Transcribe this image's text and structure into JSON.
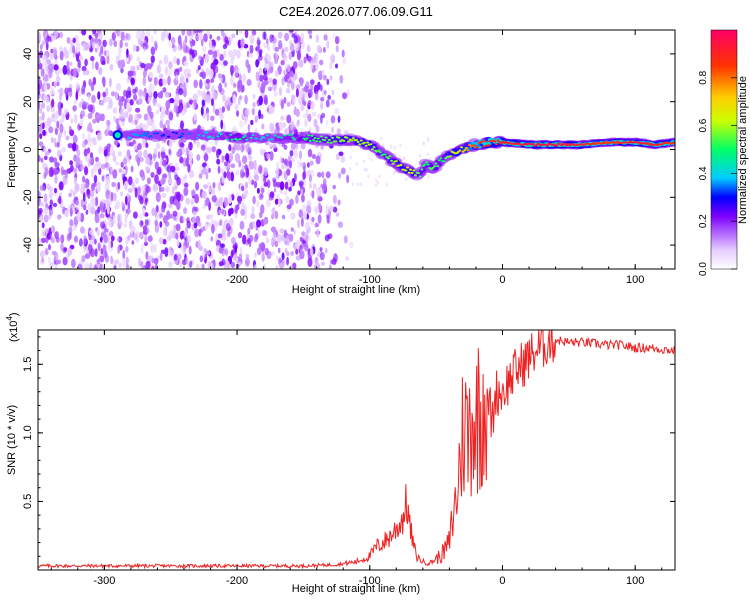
{
  "title": "C2E4.2026.077.06.09.G11",
  "chart_data": [
    {
      "type": "heatmap",
      "title": "C2E4.2026.077.06.09.G11",
      "xlabel": "Height of straight line (km)",
      "ylabel": "Frequency (Hz)",
      "xlim": [
        -350,
        130
      ],
      "ylim": [
        -50,
        50
      ],
      "xticks": [
        -300,
        -200,
        -100,
        0,
        100
      ],
      "xtick_labels": [
        "-300",
        "-200",
        "-100",
        "0",
        "100"
      ],
      "yticks": [
        -40,
        -20,
        0,
        20,
        40
      ],
      "ytick_labels": [
        "-40",
        "-20",
        "0",
        "20",
        "40"
      ],
      "colorbar": {
        "label": "Normalized spectral amplitude",
        "range": [
          0,
          1
        ],
        "ticks": [
          0,
          0.2,
          0.4,
          0.6,
          0.8
        ],
        "tick_labels": [
          "0.0",
          "0.2",
          "0.4",
          "0.6",
          "0.8"
        ],
        "colors": [
          "#ffffff",
          "#e6ccff",
          "#b266ff",
          "#7f00ff",
          "#0000ff",
          "#00ccff",
          "#00ff66",
          "#ccff00",
          "#ffcc00",
          "#ff3300",
          "#ff0066"
        ]
      },
      "noise_band_x": [
        -350,
        -125
      ],
      "signal_track": {
        "x": [
          -290,
          -250,
          -220,
          -200,
          -185,
          -150,
          -130,
          -115,
          -100,
          -90,
          -80,
          -70,
          -63,
          -58,
          -52,
          -45,
          -38,
          -30,
          -20,
          -10,
          0,
          20,
          40,
          60,
          80,
          100,
          115,
          130
        ],
        "y": [
          6,
          6,
          6,
          5,
          5,
          5,
          4,
          4,
          2,
          -2,
          -6,
          -9,
          -11,
          -6,
          -8,
          -4,
          -2,
          0,
          2,
          3,
          3,
          2,
          2,
          2,
          3,
          3,
          2,
          3
        ],
        "amplitude": [
          0.4,
          0.3,
          0.4,
          0.5,
          0.4,
          0.5,
          0.55,
          0.6,
          0.6,
          0.5,
          0.6,
          0.65,
          0.55,
          0.5,
          0.55,
          0.5,
          0.6,
          0.7,
          0.85,
          0.9,
          0.9,
          0.95,
          0.95,
          0.9,
          0.85,
          0.95,
          0.9,
          0.85
        ]
      }
    },
    {
      "type": "line",
      "xlabel": "Height of straight line (km)",
      "ylabel": "SNR (10 * v/v)",
      "yscale_label": "(x10",
      "yscale_exponent": "4",
      "xlim": [
        -350,
        130
      ],
      "ylim": [
        0,
        1.75
      ],
      "xticks": [
        -300,
        -200,
        -100,
        0,
        100
      ],
      "xtick_labels": [
        "-300",
        "-200",
        "-100",
        "0",
        "100"
      ],
      "yticks": [
        0.5,
        1.0,
        1.5
      ],
      "ytick_labels": [
        "0.5",
        "1.0",
        "1.5"
      ],
      "color": "#ee2222",
      "series": [
        {
          "name": "SNR",
          "x": [
            -350,
            -300,
            -250,
            -200,
            -150,
            -125,
            -110,
            -100,
            -95,
            -90,
            -85,
            -80,
            -75,
            -72,
            -70,
            -65,
            -60,
            -55,
            -50,
            -45,
            -40,
            -38,
            -35,
            -32,
            -30,
            -28,
            -26,
            -25,
            -22,
            -20,
            -18,
            -16,
            -15,
            -12,
            -10,
            -8,
            -5,
            0,
            5,
            10,
            15,
            20,
            25,
            30,
            35,
            40,
            50,
            60,
            70,
            80,
            90,
            100,
            110,
            120,
            130
          ],
          "y": [
            0.03,
            0.03,
            0.03,
            0.03,
            0.03,
            0.04,
            0.06,
            0.1,
            0.17,
            0.2,
            0.24,
            0.3,
            0.38,
            0.5,
            0.32,
            0.1,
            0.06,
            0.05,
            0.08,
            0.12,
            0.2,
            0.35,
            0.5,
            0.8,
            1.0,
            1.1,
            0.9,
            1.05,
            1.2,
            0.95,
            1.3,
            1.1,
            1.35,
            1.15,
            1.25,
            1.05,
            1.3,
            1.3,
            1.38,
            1.45,
            1.5,
            1.55,
            1.6,
            1.63,
            1.67,
            1.68,
            1.66,
            1.66,
            1.65,
            1.64,
            1.64,
            1.62,
            1.62,
            1.61,
            1.6
          ]
        }
      ]
    }
  ]
}
